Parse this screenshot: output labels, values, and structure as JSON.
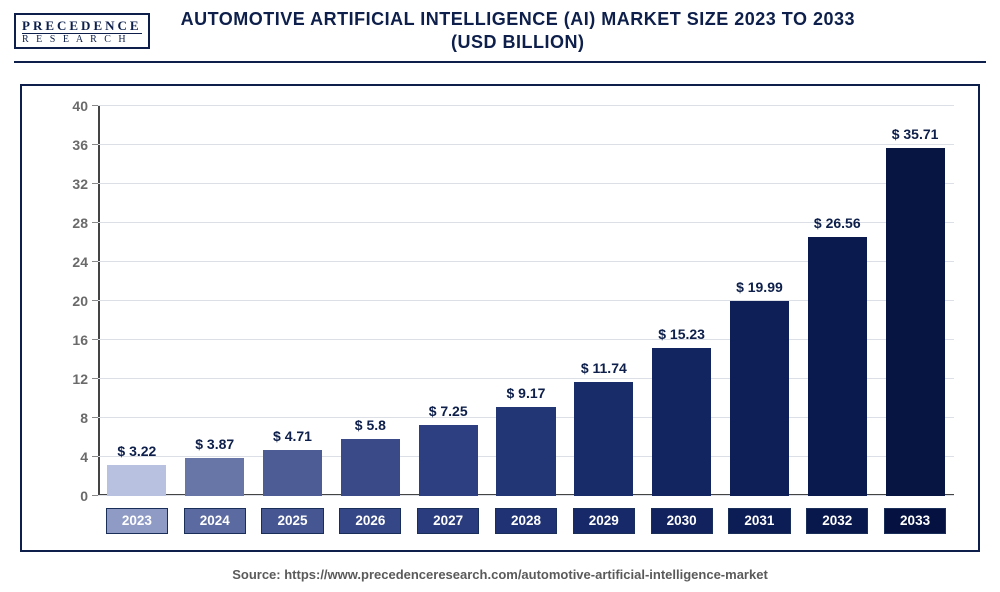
{
  "logo": {
    "top": "PRECEDENCE",
    "bottom": "R E S E A R C H"
  },
  "title_line1": "AUTOMOTIVE ARTIFICIAL INTELLIGENCE (AI) MARKET SIZE 2023 TO 2033",
  "title_line2": "(USD BILLION)",
  "source": "Source: https://www.precedenceresearch.com/automotive-artificial-intelligence-market",
  "chart": {
    "type": "bar",
    "ylim": [
      0,
      40
    ],
    "ytick_step": 4,
    "yticks": [
      0,
      4,
      8,
      12,
      16,
      20,
      24,
      28,
      32,
      36,
      40
    ],
    "background_color": "#ffffff",
    "grid_color": "#dcdfe6",
    "axis_color": "#444444",
    "title_color": "#0d1f4a",
    "label_fontsize": 14,
    "bar_width_ratio": 0.76,
    "categories": [
      "2023",
      "2024",
      "2025",
      "2026",
      "2027",
      "2028",
      "2029",
      "2030",
      "2031",
      "2032",
      "2033"
    ],
    "values": [
      3.22,
      3.87,
      4.71,
      5.8,
      7.25,
      9.17,
      11.74,
      15.23,
      19.99,
      26.56,
      35.71
    ],
    "value_labels": [
      "$ 3.22",
      "$ 3.87",
      "$ 4.71",
      "$ 5.8",
      "$ 7.25",
      "$ 9.17",
      "$ 11.74",
      "$ 15.23",
      "$ 19.99",
      "$ 26.56",
      "$ 35.71"
    ],
    "bar_colors": [
      "#b9c1e0",
      "#6875a7",
      "#4d5c95",
      "#3a4a89",
      "#2d3f80",
      "#223575",
      "#192c6a",
      "#132560",
      "#0e1f57",
      "#0a1a4e",
      "#071543"
    ],
    "xlabel_colors": [
      "#8f9bc5",
      "#5b6aa0",
      "#465692",
      "#364787",
      "#2a3c7e",
      "#203273",
      "#172968",
      "#11225e",
      "#0c1c55",
      "#08174c",
      "#051241"
    ],
    "xlabel_text_color": "#ffffff",
    "value_label_color": "#0d1f4a"
  }
}
